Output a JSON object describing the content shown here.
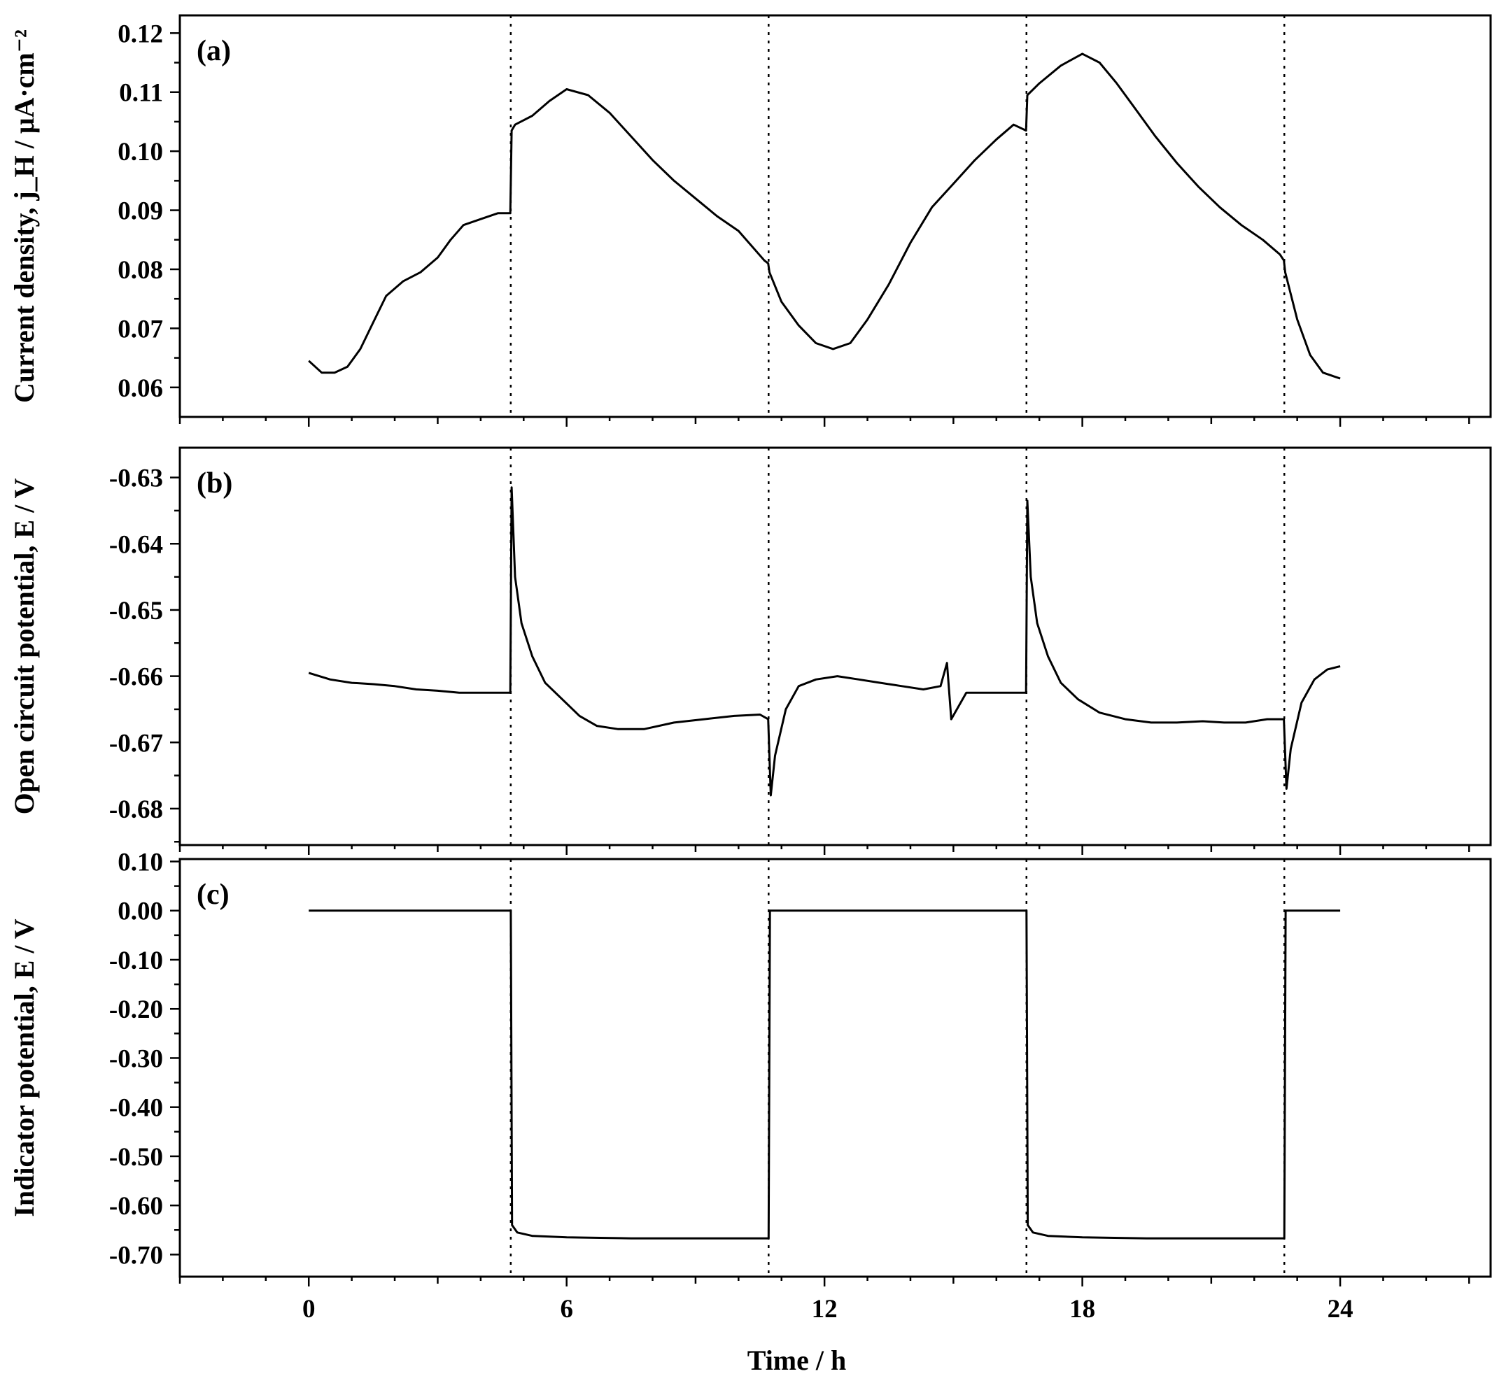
{
  "chart_data": {
    "type": "line",
    "xlabel": "Time / h",
    "xlim": [
      -3,
      27.5
    ],
    "xticks": [
      0,
      6,
      12,
      18,
      24
    ],
    "cycle_boundaries": [
      4.7,
      10.7,
      16.7,
      22.7
    ],
    "panels": [
      {
        "label": "(a)",
        "ylabel": "Current density, j_H / μA·cm⁻²",
        "ylim": [
          0.055,
          0.123
        ],
        "yticks": [
          0.06,
          0.07,
          0.08,
          0.09,
          0.1,
          0.11,
          0.12
        ],
        "ytick_labels": [
          "0.06",
          "0.07",
          "0.08",
          "0.09",
          "0.10",
          "0.11",
          "0.12"
        ],
        "series": [
          {
            "x": [
              0,
              0.3,
              0.6,
              0.9,
              1.2,
              1.5,
              1.8,
              2.2,
              2.6,
              3.0,
              3.3,
              3.6,
              4.0,
              4.4,
              4.69,
              4.72,
              4.8,
              5.2,
              5.6,
              6.0,
              6.5,
              7.0,
              7.5,
              8.0,
              8.5,
              9.0,
              9.5,
              10.0,
              10.6,
              10.69,
              10.72,
              11.0,
              11.4,
              11.8,
              12.2,
              12.6,
              13.0,
              13.5,
              14.0,
              14.5,
              15.0,
              15.5,
              16.0,
              16.4,
              16.69,
              16.72,
              17.0,
              17.5,
              18.0,
              18.4,
              18.8,
              19.2,
              19.7,
              20.2,
              20.7,
              21.2,
              21.7,
              22.2,
              22.6,
              22.69,
              22.72,
              23.0,
              23.3,
              23.6,
              24.0
            ],
            "y": [
              0.0645,
              0.0625,
              0.0625,
              0.0635,
              0.0665,
              0.071,
              0.0755,
              0.078,
              0.0795,
              0.082,
              0.085,
              0.0875,
              0.0885,
              0.0895,
              0.0895,
              0.1035,
              0.1045,
              0.106,
              0.1085,
              0.1105,
              0.1095,
              0.1065,
              0.1025,
              0.0985,
              0.095,
              0.092,
              0.089,
              0.0865,
              0.0815,
              0.081,
              0.0795,
              0.0745,
              0.0705,
              0.0675,
              0.0665,
              0.0675,
              0.0715,
              0.0775,
              0.0845,
              0.0905,
              0.0945,
              0.0985,
              0.102,
              0.1045,
              0.1035,
              0.1095,
              0.1115,
              0.1145,
              0.1165,
              0.115,
              0.1115,
              0.1075,
              0.1025,
              0.098,
              0.094,
              0.0905,
              0.0875,
              0.085,
              0.0825,
              0.0815,
              0.0795,
              0.0715,
              0.0655,
              0.0625,
              0.0615
            ]
          }
        ]
      },
      {
        "label": "(b)",
        "ylabel": "Open circuit potential, E / V",
        "ylim": [
          -0.6855,
          -0.6255
        ],
        "yticks": [
          -0.68,
          -0.67,
          -0.66,
          -0.65,
          -0.64,
          -0.63
        ],
        "ytick_labels": [
          "-0.68",
          "-0.67",
          "-0.66",
          "-0.65",
          "-0.64",
          "-0.63"
        ],
        "series": [
          {
            "x": [
              0,
              0.5,
              1.0,
              1.5,
              2.0,
              2.5,
              3.0,
              3.5,
              4.0,
              4.5,
              4.69,
              4.72,
              4.8,
              4.95,
              5.2,
              5.5,
              5.9,
              6.3,
              6.7,
              7.2,
              7.8,
              8.5,
              9.2,
              9.9,
              10.5,
              10.69,
              10.75,
              10.85,
              11.1,
              11.4,
              11.8,
              12.3,
              12.8,
              13.3,
              13.8,
              14.3,
              14.7,
              14.85,
              14.95,
              15.3,
              15.8,
              16.3,
              16.69,
              16.72,
              16.8,
              16.95,
              17.2,
              17.5,
              17.9,
              18.4,
              19.0,
              19.6,
              20.2,
              20.8,
              21.3,
              21.8,
              22.3,
              22.69,
              22.75,
              22.85,
              23.1,
              23.4,
              23.7,
              24.0
            ],
            "y": [
              -0.6595,
              -0.6605,
              -0.661,
              -0.6612,
              -0.6615,
              -0.662,
              -0.6622,
              -0.6625,
              -0.6625,
              -0.6625,
              -0.6625,
              -0.6315,
              -0.645,
              -0.652,
              -0.657,
              -0.661,
              -0.6635,
              -0.666,
              -0.6675,
              -0.668,
              -0.668,
              -0.667,
              -0.6665,
              -0.666,
              -0.6658,
              -0.6665,
              -0.678,
              -0.672,
              -0.665,
              -0.6615,
              -0.6605,
              -0.66,
              -0.6605,
              -0.661,
              -0.6615,
              -0.662,
              -0.6615,
              -0.658,
              -0.6665,
              -0.6625,
              -0.6625,
              -0.6625,
              -0.6625,
              -0.6335,
              -0.645,
              -0.652,
              -0.657,
              -0.661,
              -0.6635,
              -0.6655,
              -0.6665,
              -0.667,
              -0.667,
              -0.6668,
              -0.667,
              -0.667,
              -0.6665,
              -0.6665,
              -0.677,
              -0.671,
              -0.664,
              -0.6605,
              -0.659,
              -0.6585
            ]
          }
        ]
      },
      {
        "label": "(c)",
        "ylabel": "Indicator potential, E / V",
        "ylim": [
          -0.745,
          0.105
        ],
        "yticks": [
          0.1,
          0.0,
          -0.1,
          -0.2,
          -0.3,
          -0.4,
          -0.5,
          -0.6,
          -0.7
        ],
        "ytick_labels": [
          "0.10",
          "0.00",
          "-0.10",
          "-0.20",
          "-0.30",
          "-0.40",
          "-0.50",
          "-0.60",
          "-0.70"
        ],
        "series": [
          {
            "x": [
              0,
              4.7,
              4.73,
              4.85,
              5.2,
              6.0,
              7.5,
              9.0,
              10.7,
              10.73,
              16.7,
              16.73,
              16.85,
              17.2,
              18.0,
              19.5,
              21.0,
              22.7,
              22.73,
              24.0
            ],
            "y": [
              0.0,
              0.0,
              -0.64,
              -0.655,
              -0.662,
              -0.665,
              -0.667,
              -0.667,
              -0.667,
              0.0,
              0.0,
              -0.64,
              -0.655,
              -0.662,
              -0.665,
              -0.667,
              -0.667,
              -0.667,
              0.0,
              0.0
            ]
          }
        ]
      }
    ]
  }
}
